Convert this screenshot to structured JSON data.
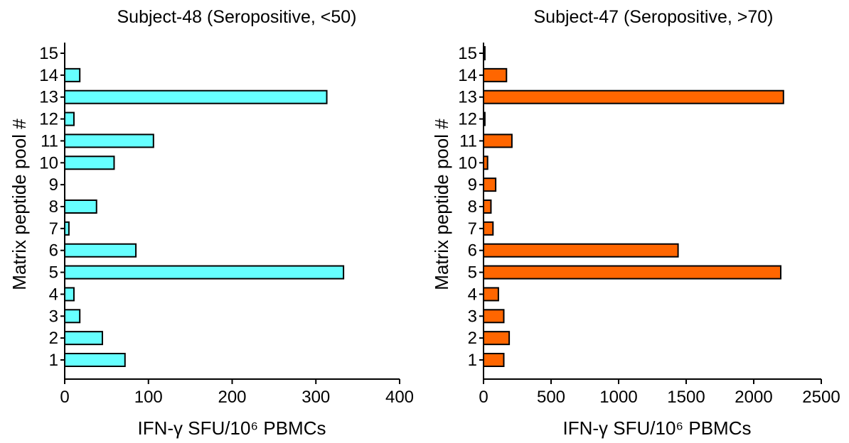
{
  "chart_data": [
    {
      "type": "bar",
      "orientation": "horizontal",
      "title": "Subject-48 (Seropositive, <50)",
      "xlabel": "IFN-γ SFU/10⁶ PBMCs",
      "ylabel": "Matrix peptide pool #",
      "categories": [
        "1",
        "2",
        "3",
        "4",
        "5",
        "6",
        "7",
        "8",
        "9",
        "10",
        "11",
        "12",
        "13",
        "14",
        "15"
      ],
      "values": [
        72,
        45,
        18,
        11,
        333,
        85,
        5,
        38,
        0,
        59,
        106,
        11,
        313,
        18,
        0
      ],
      "xlim": [
        0,
        400
      ],
      "xticks": [
        "0",
        "100",
        "200",
        "300",
        "400"
      ],
      "xtick_values": [
        0,
        100,
        200,
        300,
        400
      ],
      "bar_color": "#66FFFF",
      "grid": false
    },
    {
      "type": "bar",
      "orientation": "horizontal",
      "title": "Subject-47 (Seropositive, >70)",
      "xlabel": "IFN-γ SFU/10⁶ PBMCs",
      "ylabel": "Matrix peptide pool #",
      "categories": [
        "1",
        "2",
        "3",
        "4",
        "5",
        "6",
        "7",
        "8",
        "9",
        "10",
        "11",
        "12",
        "13",
        "14",
        "15"
      ],
      "values": [
        150,
        190,
        150,
        110,
        2200,
        1440,
        70,
        55,
        90,
        30,
        210,
        10,
        2220,
        170,
        10
      ],
      "xlim": [
        0,
        2500
      ],
      "xticks": [
        "0",
        "500",
        "1000",
        "1500",
        "2000",
        "2500"
      ],
      "xtick_values": [
        0,
        500,
        1000,
        1500,
        2000,
        2500
      ],
      "bar_color": "#FF6600",
      "grid": false
    }
  ]
}
